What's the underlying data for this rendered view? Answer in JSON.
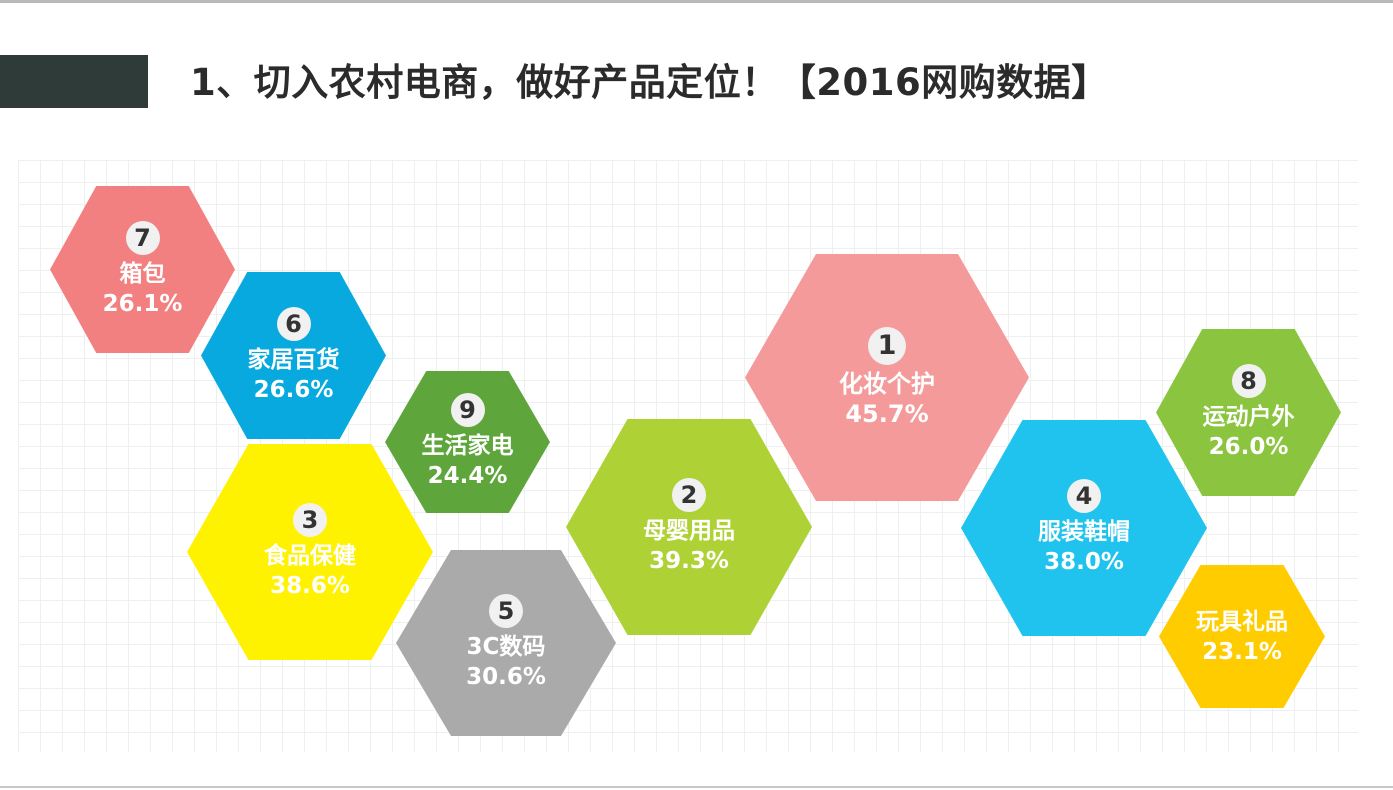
{
  "title": "1、切入农村电商，做好产品定位！【2016网购数据】",
  "categories": [
    {
      "rank": "1",
      "label": "化妆个护",
      "pct": "45.7%",
      "color": "#f49a9a"
    },
    {
      "rank": "2",
      "label": "母婴用品",
      "pct": "39.3%",
      "color": "#aed136"
    },
    {
      "rank": "3",
      "label": "食品保健",
      "pct": "38.6%",
      "color": "#fff200"
    },
    {
      "rank": "4",
      "label": "服装鞋帽",
      "pct": "38.0%",
      "color": "#1fc3ee"
    },
    {
      "rank": "5",
      "label": "3C数码",
      "pct": "30.6%",
      "color": "#aaaaaa"
    },
    {
      "rank": "6",
      "label": "家居百货",
      "pct": "26.6%",
      "color": "#07a9df"
    },
    {
      "rank": "7",
      "label": "箱包",
      "pct": "26.1%",
      "color": "#f38080"
    },
    {
      "rank": "8",
      "label": "运动户外",
      "pct": "26.0%",
      "color": "#8bc43f"
    },
    {
      "rank": "9",
      "label": "生活家电",
      "pct": "24.4%",
      "color": "#5ea63c"
    },
    {
      "rank": "",
      "label": "玩具礼品",
      "pct": "23.1%",
      "color": "#ffcc00"
    }
  ]
}
